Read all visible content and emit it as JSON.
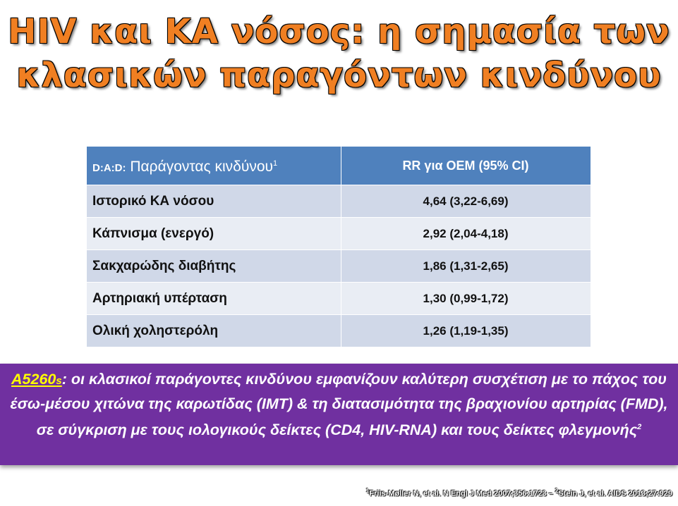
{
  "title": {
    "line1": "HIV και ΚΑ νόσος: η σημασία των",
    "line2": "κλασικών παραγόντων κινδύνου"
  },
  "table": {
    "header": {
      "col1_prefix": "D:A:D:",
      "col1_label": "Παράγοντας κινδύνου",
      "col1_sup": "1",
      "col2_label": "RR για ΟΕΜ  (95% CI)"
    },
    "rows": [
      {
        "factor": "Ιστορικό ΚΑ νόσου",
        "rr": "4,64 (3,22-6,69)"
      },
      {
        "factor": "Κάπνισμα (ενεργό)",
        "rr": "2,92 (2,04-4,18)"
      },
      {
        "factor": "Σακχαρώδης διαβήτης",
        "rr": "1,86 (1,31-2,65)"
      },
      {
        "factor": "Αρτηριακή υπέρταση",
        "rr": "1,30 (0,99-1,72)"
      },
      {
        "factor": "Ολική χοληστερόλη",
        "rr": "1,26 (1,19-1,35)"
      }
    ]
  },
  "banner": {
    "tag": "A5260",
    "tag_suffix": "s",
    "text": ": οι κλασικοί παράγοντες κινδύνου εμφανίζουν καλύτερη συσχέτιση με το πάχος του έσω-μέσου χιτώνα της καρωτίδας (IMT) & τη διατασιμότητα της βραχιονίου αρτηρίας (FMD), σε σύγκριση με τους ιολογικούς δείκτες (CD4, HIV-RNA) και τους δείκτες φλεγμονής",
    "sup": "2"
  },
  "footer": {
    "ref1_sup": "1",
    "ref1": "Friis-Møller N, et al. N Engl J Med 2007;356:1723 – ",
    "ref2_sup": "2",
    "ref2": "Stein J, et al. AIDS 2013;27:929"
  }
}
